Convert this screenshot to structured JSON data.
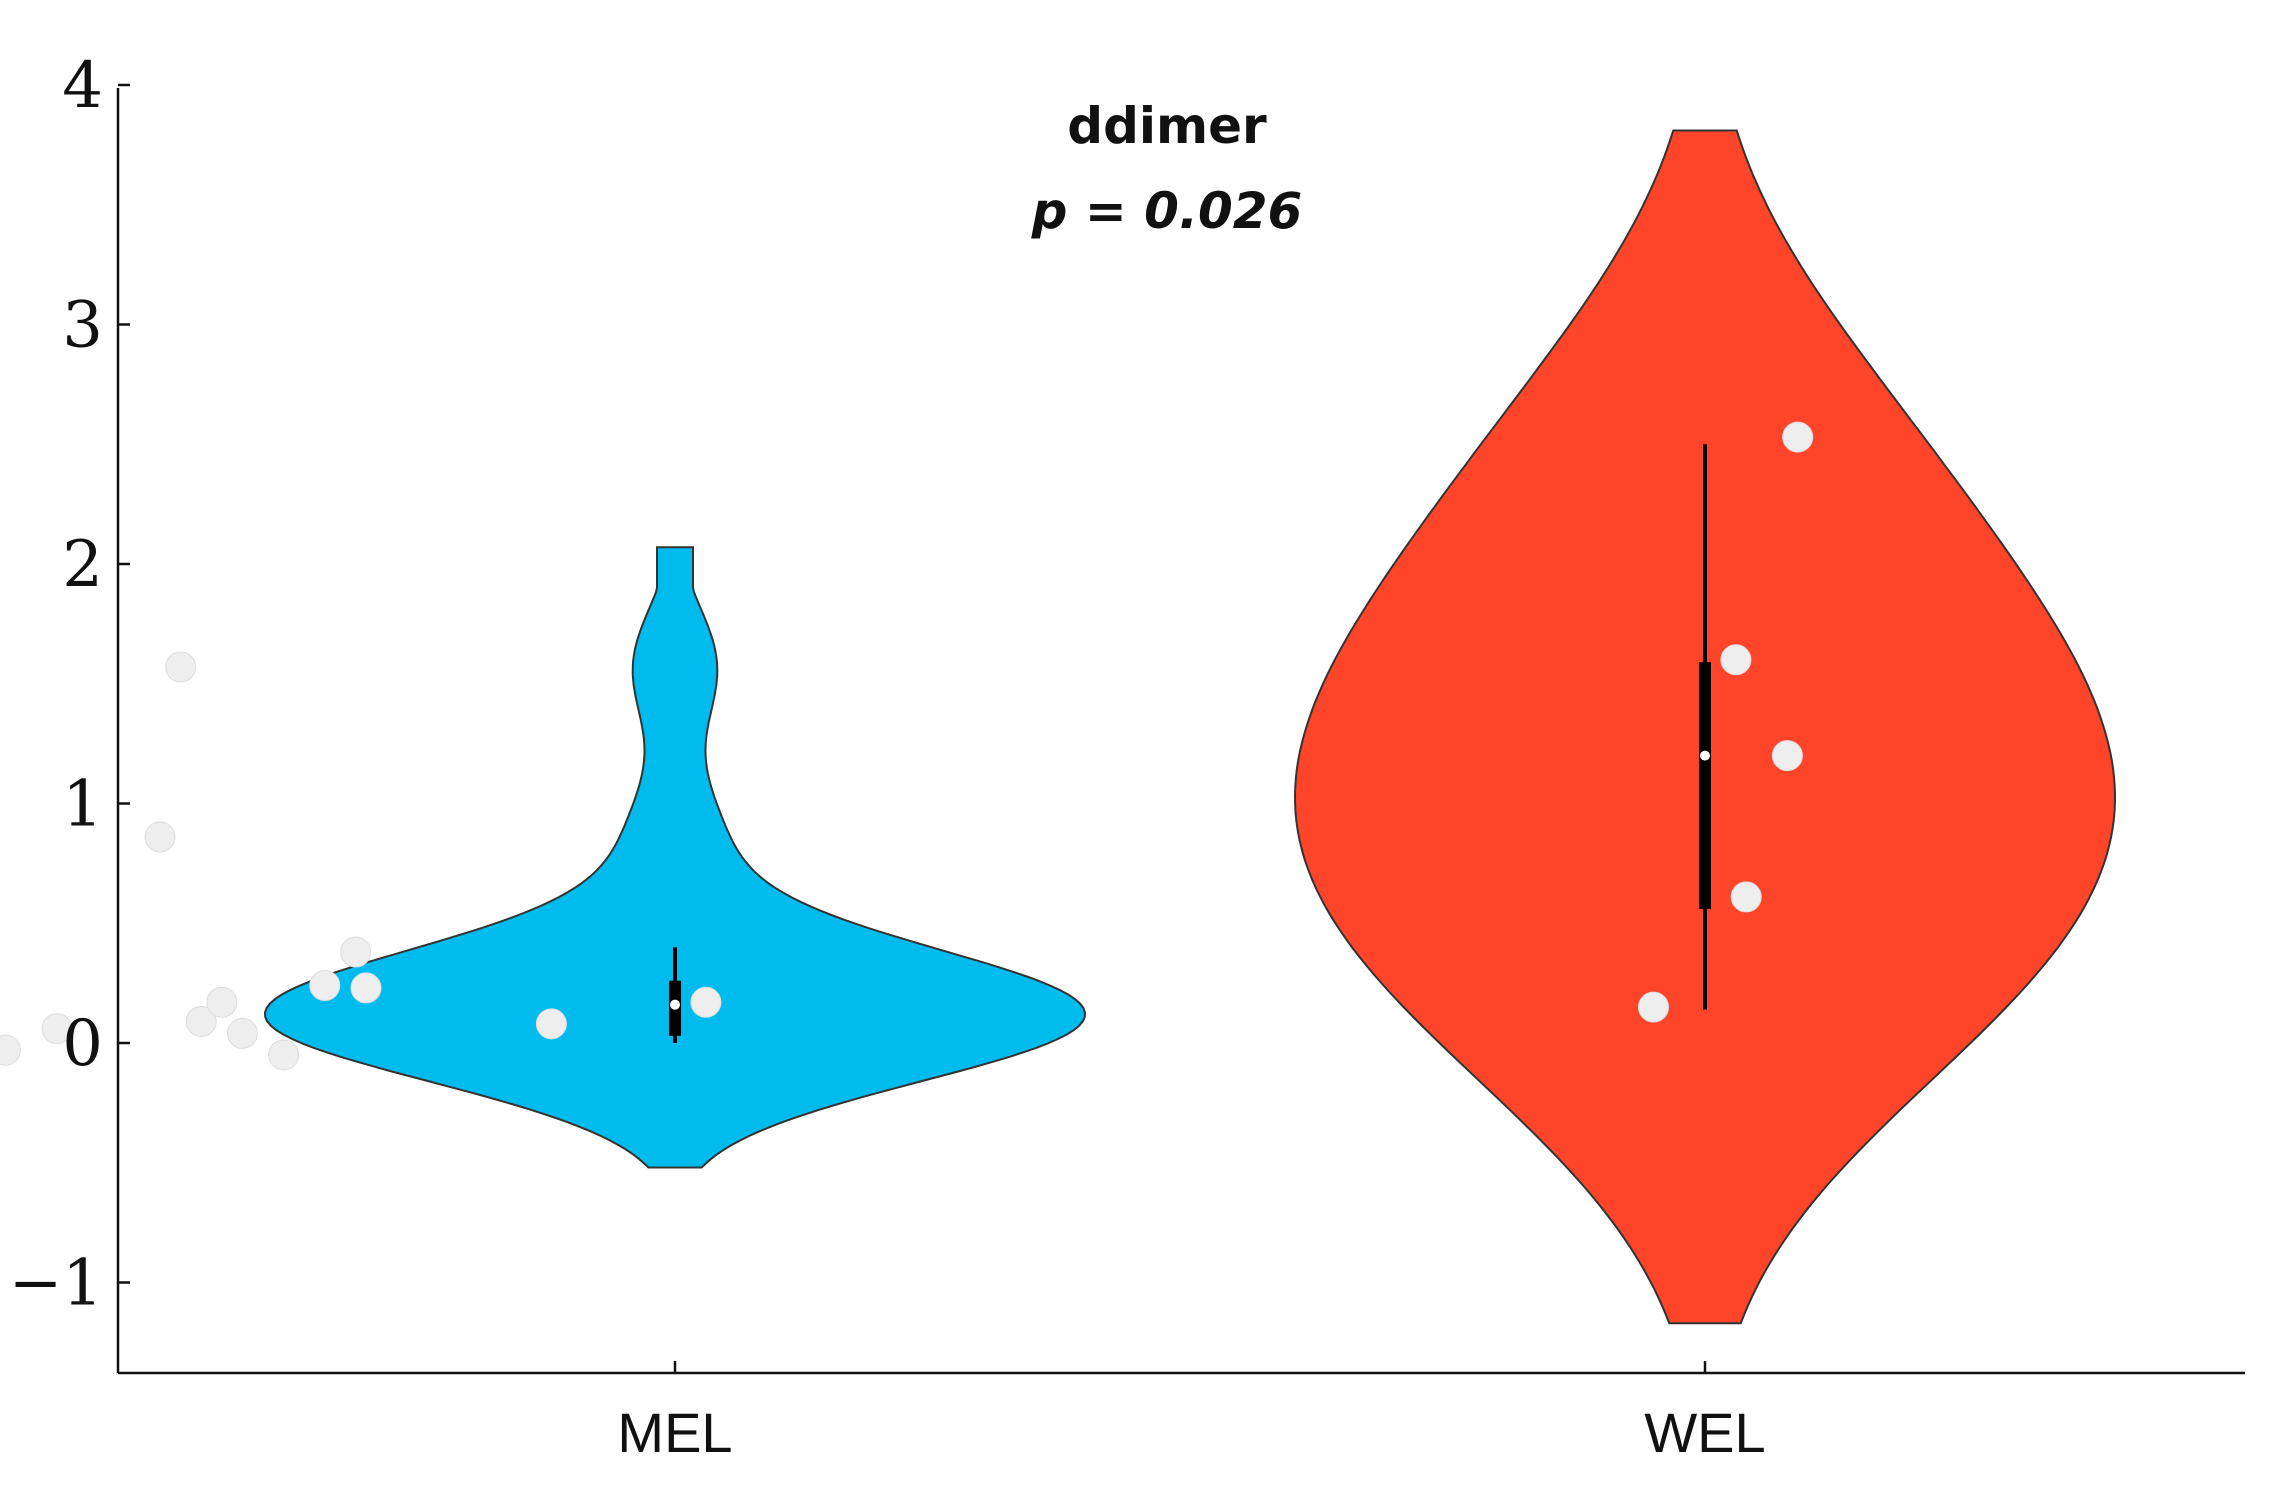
{
  "chart_data": {
    "type": "violin",
    "title": "ddimer",
    "subtitle": "p = 0.026",
    "xlabel": "",
    "ylabel": "",
    "ylim": [
      -1.37,
      4
    ],
    "y_ticks": [
      -1,
      0,
      1,
      2,
      3,
      4
    ],
    "y_tick_labels": [
      "−1",
      "0",
      "1",
      "2",
      "3",
      "4"
    ],
    "categories": [
      "MEL",
      "WEL"
    ],
    "grid": false,
    "series": [
      {
        "category": "MEL",
        "color": "#00BBEE",
        "points": [
          {
            "x": 0.35,
            "y": -0.03
          },
          {
            "x": 0.62,
            "y": -0.05
          },
          {
            "x": 0.4,
            "y": 0.06
          },
          {
            "x": 0.5,
            "y": 0.86
          },
          {
            "x": 0.52,
            "y": 1.57
          },
          {
            "x": 0.54,
            "y": 0.09
          },
          {
            "x": 0.56,
            "y": 0.17
          },
          {
            "x": 0.58,
            "y": 0.04
          },
          {
            "x": 0.66,
            "y": 0.24
          },
          {
            "x": 0.69,
            "y": 0.38
          },
          {
            "x": 0.7,
            "y": 0.23
          },
          {
            "x": 0.88,
            "y": 0.08
          },
          {
            "x": 1.03,
            "y": 0.17
          }
        ],
        "median": 0.16,
        "q1": 0.03,
        "q3": 0.26,
        "whisker_low": 0.0,
        "whisker_high": 0.4,
        "density_range": [
          -0.52,
          2.07
        ]
      },
      {
        "category": "WEL",
        "color": "#FF4529",
        "points": [
          {
            "x": 1.95,
            "y": 0.15
          },
          {
            "x": 2.04,
            "y": 0.61
          },
          {
            "x": 2.03,
            "y": 1.6
          },
          {
            "x": 2.08,
            "y": 1.2
          },
          {
            "x": 2.09,
            "y": 2.53
          }
        ],
        "median": 1.2,
        "q1": 0.56,
        "q3": 1.59,
        "whisker_low": 0.14,
        "whisker_high": 2.5,
        "density_range": [
          -1.17,
          3.81
        ]
      }
    ]
  }
}
